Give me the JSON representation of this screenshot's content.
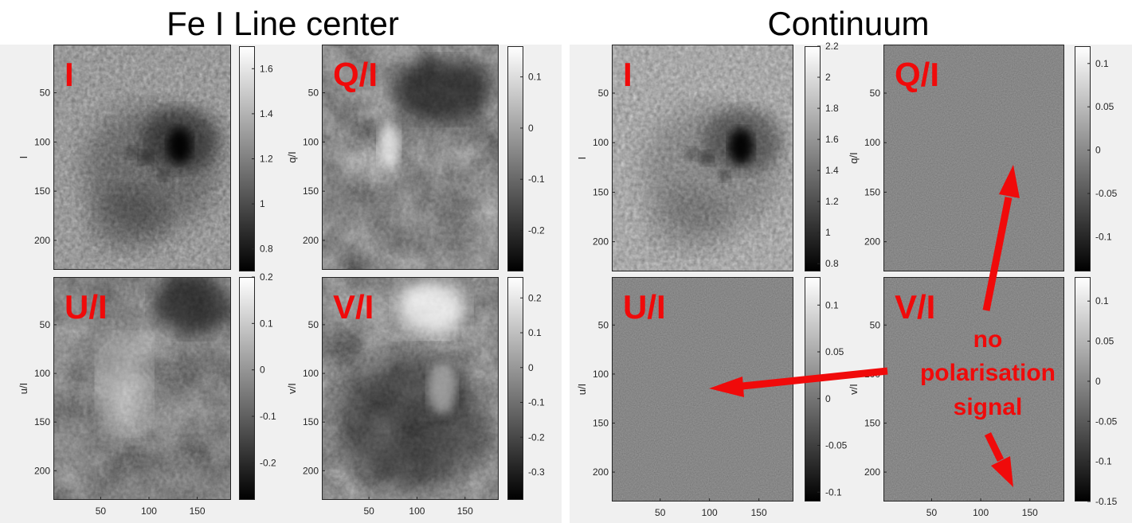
{
  "figure": {
    "left_title": "Fe I Line center",
    "right_title": "Continuum"
  },
  "annotation": {
    "lines": [
      "no",
      "polarisation",
      "signal"
    ],
    "color": "#f00a0a"
  },
  "chart_data": [
    {
      "type": "heatmap",
      "group": "Fe I Line center",
      "panel_label": "I",
      "ylabel": "I",
      "colormap": "gray",
      "texture": "granulation",
      "xticks": [],
      "yticks": [
        "50",
        "100",
        "150",
        "200"
      ],
      "colorbar": {
        "range": [
          0.7,
          1.7
        ],
        "ticks": [
          0.8,
          1,
          1.2,
          1.4,
          1.6
        ],
        "tick_labels": [
          "0.8",
          "1",
          "1.2",
          "1.4",
          "1.6"
        ]
      }
    },
    {
      "type": "heatmap",
      "group": "Fe I Line center",
      "panel_label": "Q/I",
      "ylabel": "q/I",
      "colormap": "gray",
      "texture": "smooth",
      "xticks": [],
      "yticks": [
        "50",
        "100",
        "150",
        "200"
      ],
      "colorbar": {
        "range": [
          -0.28,
          0.16
        ],
        "ticks": [
          0.1,
          0,
          -0.1,
          -0.2
        ],
        "tick_labels": [
          "0.1",
          "0",
          "-0.1",
          "-0.2"
        ]
      }
    },
    {
      "type": "heatmap",
      "group": "Fe I Line center",
      "panel_label": "U/I",
      "ylabel": "u/I",
      "colormap": "gray",
      "texture": "smooth",
      "xticks": [
        "50",
        "100",
        "150"
      ],
      "yticks": [
        "50",
        "100",
        "150",
        "200"
      ],
      "colorbar": {
        "range": [
          -0.28,
          0.2
        ],
        "ticks": [
          0.2,
          0.1,
          0,
          -0.1,
          -0.2
        ],
        "tick_labels": [
          "0.2",
          "0.1",
          "0",
          "-0.1",
          "-0.2"
        ]
      }
    },
    {
      "type": "heatmap",
      "group": "Fe I Line center",
      "panel_label": "V/I",
      "ylabel": "v/I",
      "colormap": "gray",
      "texture": "smooth",
      "xticks": [
        "50",
        "100",
        "150"
      ],
      "yticks": [
        "50",
        "100",
        "150",
        "200"
      ],
      "colorbar": {
        "range": [
          -0.38,
          0.26
        ],
        "ticks": [
          0.2,
          0.1,
          0,
          -0.1,
          -0.2,
          -0.3
        ],
        "tick_labels": [
          "0.2",
          "0.1",
          "0",
          "-0.1",
          "-0.2",
          "-0.3"
        ]
      }
    },
    {
      "type": "heatmap",
      "group": "Continuum",
      "panel_label": "I",
      "ylabel": "I",
      "colormap": "gray",
      "texture": "granulation",
      "xticks": [],
      "yticks": [
        "50",
        "100",
        "150",
        "200"
      ],
      "colorbar": {
        "range": [
          0.75,
          2.2
        ],
        "ticks": [
          2.2,
          2,
          1.8,
          1.6,
          1.4,
          1.2,
          1,
          0.8
        ],
        "tick_labels": [
          "2.2",
          "2",
          "1.8",
          "1.6",
          "1.4",
          "1.2",
          "1",
          "0.8"
        ]
      }
    },
    {
      "type": "heatmap",
      "group": "Continuum",
      "panel_label": "Q/I",
      "ylabel": "q/I",
      "colormap": "gray",
      "texture": "noise",
      "xticks": [],
      "yticks": [
        "50",
        "100",
        "150",
        "200"
      ],
      "colorbar": {
        "range": [
          -0.14,
          0.12
        ],
        "ticks": [
          0.1,
          0.05,
          0,
          -0.05,
          -0.1
        ],
        "tick_labels": [
          "0.1",
          "0.05",
          "0",
          "-0.05",
          "-0.1"
        ]
      }
    },
    {
      "type": "heatmap",
      "group": "Continuum",
      "panel_label": "U/I",
      "ylabel": "u/I",
      "colormap": "gray",
      "texture": "noise",
      "xticks": [
        "50",
        "100",
        "150"
      ],
      "yticks": [
        "50",
        "100",
        "150",
        "200"
      ],
      "colorbar": {
        "range": [
          -0.11,
          0.13
        ],
        "ticks": [
          0.1,
          0.05,
          0,
          -0.05,
          -0.1
        ],
        "tick_labels": [
          "0.1",
          "0.05",
          "0",
          "-0.05",
          "-0.1"
        ]
      }
    },
    {
      "type": "heatmap",
      "group": "Continuum",
      "panel_label": "V/I",
      "ylabel": "v/I",
      "colormap": "gray",
      "texture": "noise",
      "xticks": [
        "50",
        "100",
        "150"
      ],
      "yticks": [
        "50",
        "100",
        "150",
        "200"
      ],
      "colorbar": {
        "range": [
          -0.15,
          0.13
        ],
        "ticks": [
          0.1,
          0.05,
          0,
          -0.05,
          -0.1,
          -0.15
        ],
        "tick_labels": [
          "0.1",
          "0.05",
          "0",
          "-0.05",
          "-0.1",
          "-0.15"
        ]
      }
    }
  ]
}
